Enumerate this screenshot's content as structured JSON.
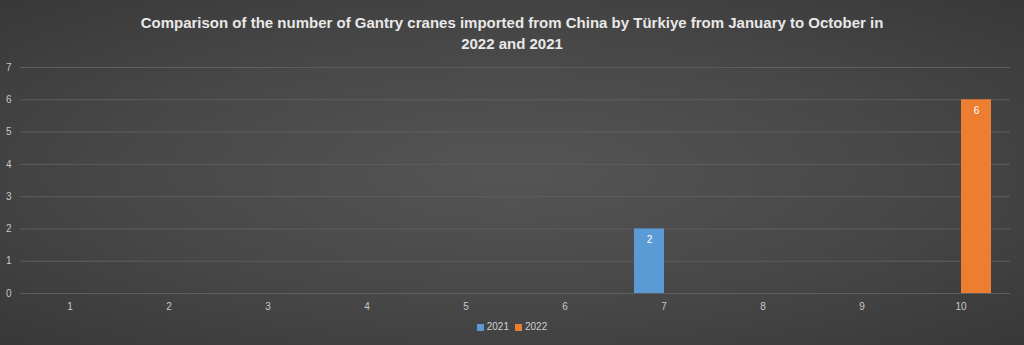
{
  "chart_data": {
    "type": "bar",
    "title": "Comparison of the number of Gantry cranes imported from China by Türkiye from January to October in 2022 and 2021",
    "categories": [
      1,
      2,
      3,
      4,
      5,
      6,
      7,
      8,
      9,
      10
    ],
    "series": [
      {
        "name": "2021",
        "color": "#5b9bd5",
        "values": [
          0,
          0,
          0,
          0,
          0,
          0,
          2,
          0,
          0,
          0
        ]
      },
      {
        "name": "2022",
        "color": "#ed7d31",
        "values": [
          0,
          0,
          0,
          0,
          0,
          0,
          0,
          0,
          0,
          6
        ]
      }
    ],
    "ylim": [
      0,
      7
    ],
    "yticks": [
      0,
      1,
      2,
      3,
      4,
      5,
      6,
      7
    ],
    "grid": true,
    "legend": "bottom",
    "data_labels": true
  }
}
